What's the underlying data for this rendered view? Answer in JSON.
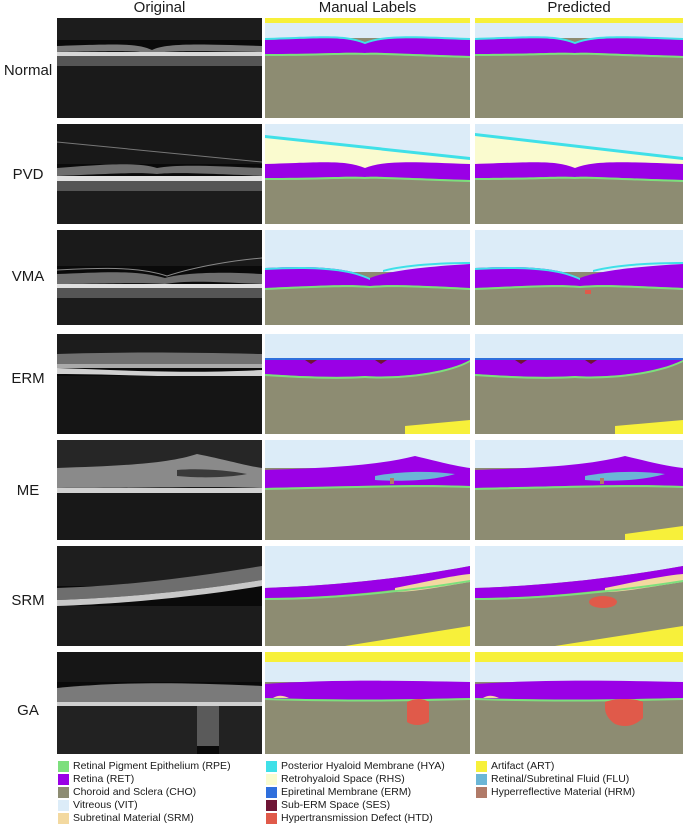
{
  "columns": [
    {
      "title": "Original"
    },
    {
      "title": "Manual Labels"
    },
    {
      "title": "Predicted"
    }
  ],
  "rows": [
    {
      "label": "Normal"
    },
    {
      "label": "PVD"
    },
    {
      "label": "VMA"
    },
    {
      "label": "ERM"
    },
    {
      "label": "ME"
    },
    {
      "label": "SRM"
    },
    {
      "label": "GA"
    }
  ],
  "colors": {
    "rpe": "#7ddf7d",
    "ret": "#9a00e6",
    "cho": "#8d8c72",
    "vit": "#dcecf8",
    "srm": "#f3d9a0",
    "hya": "#3fe0e8",
    "rhs": "#fafbcf",
    "erm": "#2f6fdc",
    "ses": "#6e1535",
    "htd": "#e05a4a",
    "art": "#f7f03a",
    "flu": "#6bb6d6",
    "hrm": "#b07a68"
  },
  "legend": [
    {
      "label": "Retinal Pigment Epithelium (RPE)",
      "color": "#7ddf7d"
    },
    {
      "label": "Retina (RET)",
      "color": "#9a00e6"
    },
    {
      "label": "Choroid and Sclera (CHO)",
      "color": "#8d8c72"
    },
    {
      "label": "Vitreous (VIT)",
      "color": "#dcecf8"
    },
    {
      "label": "Subretinal Material (SRM)",
      "color": "#f3d9a0"
    },
    {
      "label": "Posterior Hyaloid Membrane (HYA)",
      "color": "#3fe0e8"
    },
    {
      "label": "Retrohyaloid Space (RHS)",
      "color": "#fafbcf"
    },
    {
      "label": "Epiretinal Membrane (ERM)",
      "color": "#2f6fdc"
    },
    {
      "label": "Sub-ERM Space (SES)",
      "color": "#6e1535"
    },
    {
      "label": "Hypertransmission Defect (HTD)",
      "color": "#e05a4a"
    },
    {
      "label": "Artifact (ART)",
      "color": "#f7f03a"
    },
    {
      "label": "Retinal/Subretinal Fluid (FLU)",
      "color": "#6bb6d6"
    },
    {
      "label": "Hyperreflective Material (HRM)",
      "color": "#b07a68"
    }
  ]
}
